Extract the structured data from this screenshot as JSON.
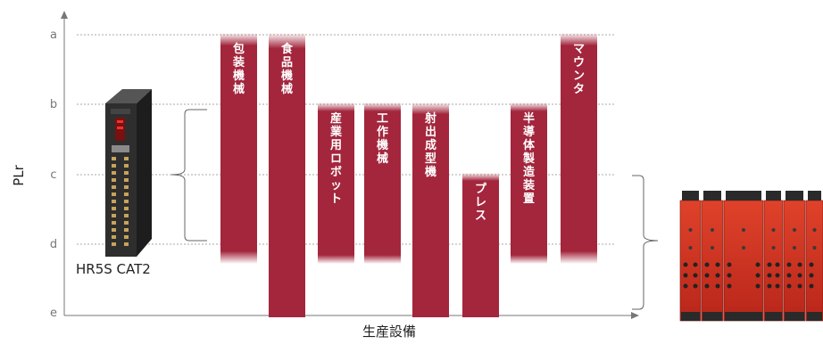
{
  "chart_data": {
    "type": "bar",
    "title": "",
    "xlabel": "生産設備",
    "ylabel": "PLr",
    "y_ticks": [
      "a",
      "b",
      "c",
      "d",
      "e"
    ],
    "grid": true,
    "categories": [
      "包装機械",
      "食品機械",
      "産業用ロボット",
      "工作機械",
      "射出成型機",
      "プレス",
      "半導体製造装置",
      "マウンタ"
    ],
    "ranges": [
      {
        "category": "包装機械",
        "from": "a",
        "to": "d"
      },
      {
        "category": "食品機械",
        "from": "a",
        "to": "e"
      },
      {
        "category": "産業用ロボット",
        "from": "b",
        "to": "d"
      },
      {
        "category": "工作機械",
        "from": "b",
        "to": "d"
      },
      {
        "category": "射出成型機",
        "from": "b",
        "to": "e"
      },
      {
        "category": "プレス",
        "from": "c",
        "to": "e"
      },
      {
        "category": "半導体製造装置",
        "from": "b",
        "to": "d"
      },
      {
        "category": "マウンタ",
        "from": "a",
        "to": "d"
      }
    ],
    "bar_color": "#a3263c",
    "annotations": [
      {
        "text": "HR5S  CAT2",
        "covers": [
          "b",
          "d"
        ],
        "side": "left"
      },
      {
        "text": "",
        "covers": [
          "c",
          "e"
        ],
        "side": "right"
      }
    ]
  }
}
